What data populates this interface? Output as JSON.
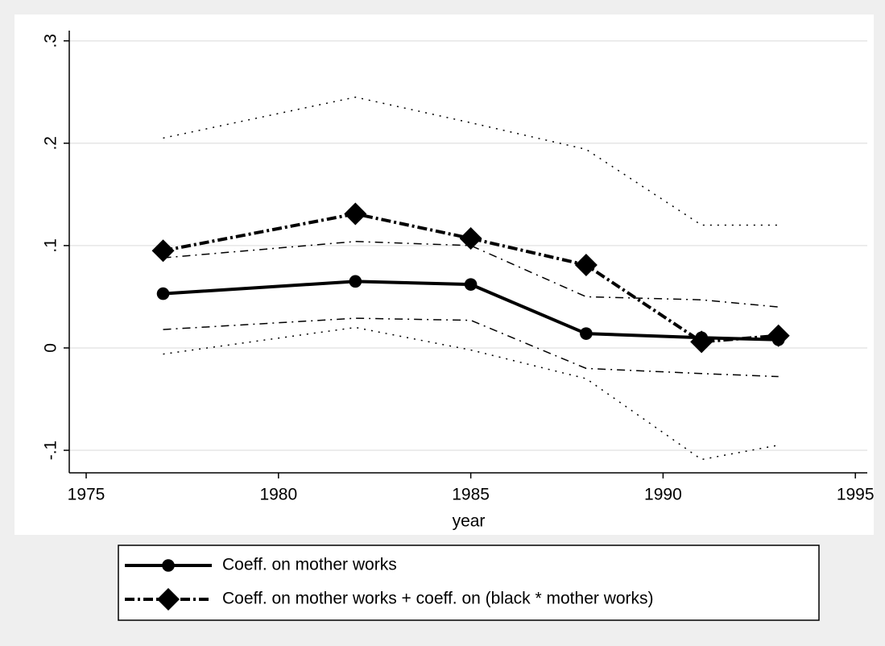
{
  "chart_data": {
    "type": "line",
    "x": [
      1977,
      1982,
      1985,
      1988,
      1991,
      1993
    ],
    "x_label": "year",
    "xlim": [
      1974.56,
      1995.31
    ],
    "xticks": [
      1975,
      1980,
      1985,
      1990,
      1995
    ],
    "ylim": [
      -0.122,
      0.31
    ],
    "yticks": [
      {
        "value": -0.1,
        "label": "-.1"
      },
      0,
      {
        "value": 0.1,
        "label": ".1"
      },
      {
        "value": 0.2,
        "label": ".2"
      },
      {
        "value": 0.3,
        "label": ".3"
      }
    ],
    "grid": true,
    "legend": "bottom",
    "series": [
      {
        "name": "Coeff. on mother works",
        "color": "#000000",
        "style": "solid",
        "marker": "circle",
        "values": [
          0.053,
          0.065,
          0.062,
          0.014,
          0.01,
          0.008
        ]
      },
      {
        "name": "Coeff. on mother works + coeff. on (black * mother works)",
        "color": "#000000",
        "style": "dashdot",
        "marker": "diamond",
        "values": [
          0.095,
          0.131,
          0.107,
          0.081,
          0.006,
          0.012
        ]
      },
      {
        "color": "#000000",
        "style": "dashdot-thin",
        "values": [
          0.088,
          0.104,
          0.1,
          0.05,
          0.047,
          0.04
        ]
      },
      {
        "color": "#000000",
        "style": "dashdot-thin",
        "values": [
          0.018,
          0.029,
          0.027,
          -0.02,
          -0.025,
          -0.028
        ]
      },
      {
        "color": "#000000",
        "style": "dotted",
        "values": [
          0.205,
          0.245,
          0.22,
          0.194,
          0.12,
          0.12
        ]
      },
      {
        "color": "#000000",
        "style": "dotted",
        "values": [
          -0.006,
          0.02,
          -0.002,
          -0.03,
          -0.109,
          -0.095
        ]
      }
    ]
  }
}
